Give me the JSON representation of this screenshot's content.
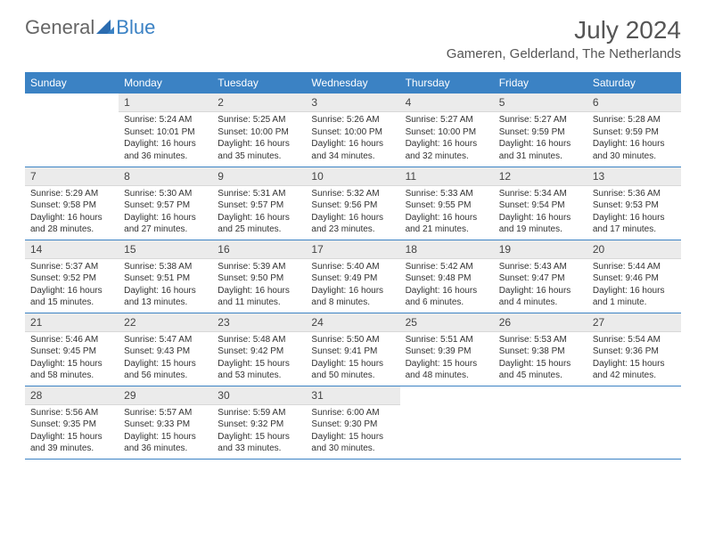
{
  "brand": {
    "part1": "General",
    "part2": "Blue"
  },
  "title": "July 2024",
  "location": "Gameren, Gelderland, The Netherlands",
  "weekdays": [
    "Sunday",
    "Monday",
    "Tuesday",
    "Wednesday",
    "Thursday",
    "Friday",
    "Saturday"
  ],
  "colors": {
    "header_bg": "#3b82c4",
    "daynum_bg": "#ebebeb"
  },
  "weeks": [
    [
      null,
      {
        "n": "1",
        "sunrise": "Sunrise: 5:24 AM",
        "sunset": "Sunset: 10:01 PM",
        "daylight": "Daylight: 16 hours and 36 minutes."
      },
      {
        "n": "2",
        "sunrise": "Sunrise: 5:25 AM",
        "sunset": "Sunset: 10:00 PM",
        "daylight": "Daylight: 16 hours and 35 minutes."
      },
      {
        "n": "3",
        "sunrise": "Sunrise: 5:26 AM",
        "sunset": "Sunset: 10:00 PM",
        "daylight": "Daylight: 16 hours and 34 minutes."
      },
      {
        "n": "4",
        "sunrise": "Sunrise: 5:27 AM",
        "sunset": "Sunset: 10:00 PM",
        "daylight": "Daylight: 16 hours and 32 minutes."
      },
      {
        "n": "5",
        "sunrise": "Sunrise: 5:27 AM",
        "sunset": "Sunset: 9:59 PM",
        "daylight": "Daylight: 16 hours and 31 minutes."
      },
      {
        "n": "6",
        "sunrise": "Sunrise: 5:28 AM",
        "sunset": "Sunset: 9:59 PM",
        "daylight": "Daylight: 16 hours and 30 minutes."
      }
    ],
    [
      {
        "n": "7",
        "sunrise": "Sunrise: 5:29 AM",
        "sunset": "Sunset: 9:58 PM",
        "daylight": "Daylight: 16 hours and 28 minutes."
      },
      {
        "n": "8",
        "sunrise": "Sunrise: 5:30 AM",
        "sunset": "Sunset: 9:57 PM",
        "daylight": "Daylight: 16 hours and 27 minutes."
      },
      {
        "n": "9",
        "sunrise": "Sunrise: 5:31 AM",
        "sunset": "Sunset: 9:57 PM",
        "daylight": "Daylight: 16 hours and 25 minutes."
      },
      {
        "n": "10",
        "sunrise": "Sunrise: 5:32 AM",
        "sunset": "Sunset: 9:56 PM",
        "daylight": "Daylight: 16 hours and 23 minutes."
      },
      {
        "n": "11",
        "sunrise": "Sunrise: 5:33 AM",
        "sunset": "Sunset: 9:55 PM",
        "daylight": "Daylight: 16 hours and 21 minutes."
      },
      {
        "n": "12",
        "sunrise": "Sunrise: 5:34 AM",
        "sunset": "Sunset: 9:54 PM",
        "daylight": "Daylight: 16 hours and 19 minutes."
      },
      {
        "n": "13",
        "sunrise": "Sunrise: 5:36 AM",
        "sunset": "Sunset: 9:53 PM",
        "daylight": "Daylight: 16 hours and 17 minutes."
      }
    ],
    [
      {
        "n": "14",
        "sunrise": "Sunrise: 5:37 AM",
        "sunset": "Sunset: 9:52 PM",
        "daylight": "Daylight: 16 hours and 15 minutes."
      },
      {
        "n": "15",
        "sunrise": "Sunrise: 5:38 AM",
        "sunset": "Sunset: 9:51 PM",
        "daylight": "Daylight: 16 hours and 13 minutes."
      },
      {
        "n": "16",
        "sunrise": "Sunrise: 5:39 AM",
        "sunset": "Sunset: 9:50 PM",
        "daylight": "Daylight: 16 hours and 11 minutes."
      },
      {
        "n": "17",
        "sunrise": "Sunrise: 5:40 AM",
        "sunset": "Sunset: 9:49 PM",
        "daylight": "Daylight: 16 hours and 8 minutes."
      },
      {
        "n": "18",
        "sunrise": "Sunrise: 5:42 AM",
        "sunset": "Sunset: 9:48 PM",
        "daylight": "Daylight: 16 hours and 6 minutes."
      },
      {
        "n": "19",
        "sunrise": "Sunrise: 5:43 AM",
        "sunset": "Sunset: 9:47 PM",
        "daylight": "Daylight: 16 hours and 4 minutes."
      },
      {
        "n": "20",
        "sunrise": "Sunrise: 5:44 AM",
        "sunset": "Sunset: 9:46 PM",
        "daylight": "Daylight: 16 hours and 1 minute."
      }
    ],
    [
      {
        "n": "21",
        "sunrise": "Sunrise: 5:46 AM",
        "sunset": "Sunset: 9:45 PM",
        "daylight": "Daylight: 15 hours and 58 minutes."
      },
      {
        "n": "22",
        "sunrise": "Sunrise: 5:47 AM",
        "sunset": "Sunset: 9:43 PM",
        "daylight": "Daylight: 15 hours and 56 minutes."
      },
      {
        "n": "23",
        "sunrise": "Sunrise: 5:48 AM",
        "sunset": "Sunset: 9:42 PM",
        "daylight": "Daylight: 15 hours and 53 minutes."
      },
      {
        "n": "24",
        "sunrise": "Sunrise: 5:50 AM",
        "sunset": "Sunset: 9:41 PM",
        "daylight": "Daylight: 15 hours and 50 minutes."
      },
      {
        "n": "25",
        "sunrise": "Sunrise: 5:51 AM",
        "sunset": "Sunset: 9:39 PM",
        "daylight": "Daylight: 15 hours and 48 minutes."
      },
      {
        "n": "26",
        "sunrise": "Sunrise: 5:53 AM",
        "sunset": "Sunset: 9:38 PM",
        "daylight": "Daylight: 15 hours and 45 minutes."
      },
      {
        "n": "27",
        "sunrise": "Sunrise: 5:54 AM",
        "sunset": "Sunset: 9:36 PM",
        "daylight": "Daylight: 15 hours and 42 minutes."
      }
    ],
    [
      {
        "n": "28",
        "sunrise": "Sunrise: 5:56 AM",
        "sunset": "Sunset: 9:35 PM",
        "daylight": "Daylight: 15 hours and 39 minutes."
      },
      {
        "n": "29",
        "sunrise": "Sunrise: 5:57 AM",
        "sunset": "Sunset: 9:33 PM",
        "daylight": "Daylight: 15 hours and 36 minutes."
      },
      {
        "n": "30",
        "sunrise": "Sunrise: 5:59 AM",
        "sunset": "Sunset: 9:32 PM",
        "daylight": "Daylight: 15 hours and 33 minutes."
      },
      {
        "n": "31",
        "sunrise": "Sunrise: 6:00 AM",
        "sunset": "Sunset: 9:30 PM",
        "daylight": "Daylight: 15 hours and 30 minutes."
      },
      null,
      null,
      null
    ]
  ]
}
